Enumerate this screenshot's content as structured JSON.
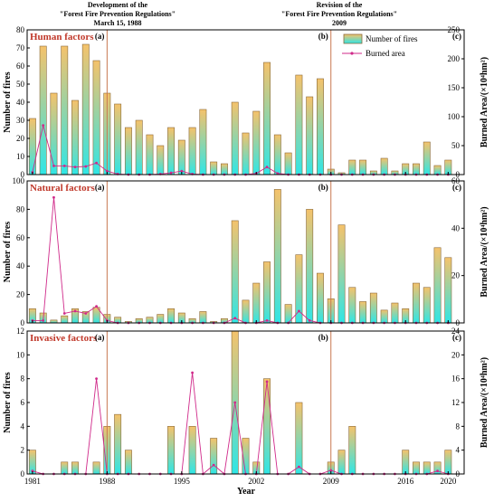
{
  "annotations": {
    "left_line1": "Development of the",
    "left_line2": "\"Forest Fire Prevention Regulations\"",
    "left_line3": "March 15, 1988",
    "right_line1": "Revision of the",
    "right_line2": "\"Forest Fire Prevention Regulations\"",
    "right_line3": "2009"
  },
  "x_axis": {
    "label": "Year",
    "ticks": [
      1981,
      1988,
      1995,
      2002,
      2009,
      2016,
      2020
    ]
  },
  "legend": {
    "bars": "Number of fires",
    "line": "Burned area"
  },
  "colors": {
    "bar_top": "#f5c26b",
    "bar_bottom": "#2fe6e6",
    "bar_edge": "#8a6a3a",
    "line": "#d02a8a",
    "ref_line": "#c87850",
    "panel_title": "#c0392b"
  },
  "reference_years": [
    1988,
    2009
  ],
  "chart_data": [
    {
      "type": "bar",
      "title": "Human factors",
      "panel_labels": [
        "(a)",
        "(b)",
        "(c)"
      ],
      "x": [
        1981,
        1982,
        1983,
        1984,
        1985,
        1986,
        1987,
        1988,
        1989,
        1990,
        1991,
        1992,
        1993,
        1994,
        1995,
        1996,
        1997,
        1998,
        1999,
        2000,
        2001,
        2002,
        2003,
        2004,
        2005,
        2006,
        2007,
        2008,
        2009,
        2010,
        2011,
        2012,
        2013,
        2014,
        2015,
        2016,
        2017,
        2018,
        2019,
        2020
      ],
      "series": [
        {
          "name": "Number of fires",
          "values": [
            31,
            71,
            45,
            71,
            41,
            72,
            63,
            45,
            39,
            26,
            30,
            22,
            16,
            26,
            19,
            26,
            36,
            7,
            6,
            40,
            23,
            35,
            62,
            22,
            12,
            55,
            43,
            53,
            3,
            1,
            8,
            8,
            2,
            9,
            2,
            6,
            6,
            18,
            5,
            8
          ]
        },
        {
          "name": "Burned area",
          "values": [
            4,
            85,
            15,
            15,
            13,
            14,
            20,
            6,
            1,
            0,
            0,
            0,
            1,
            3,
            6,
            1,
            0,
            0,
            0,
            0,
            0,
            2,
            13,
            2,
            0,
            0,
            0,
            0,
            0,
            0,
            0,
            0,
            0,
            0,
            0,
            0,
            0,
            0,
            0,
            0
          ]
        }
      ],
      "ylabel": "Number of fires",
      "ylim": [
        0,
        80
      ],
      "yticks": [
        0,
        10,
        20,
        30,
        40,
        50,
        60,
        70,
        80
      ],
      "y2label": "Burned Area/(×10⁴hm²)",
      "y2lim": [
        0,
        250
      ],
      "y2ticks": [
        0,
        50,
        100,
        150,
        200,
        250
      ],
      "legend_position": "top-right"
    },
    {
      "type": "bar",
      "title": "Natural factors",
      "panel_labels": [
        "(a)",
        "(b)",
        "(c)"
      ],
      "x": [
        1981,
        1982,
        1983,
        1984,
        1985,
        1986,
        1987,
        1988,
        1989,
        1990,
        1991,
        1992,
        1993,
        1994,
        1995,
        1996,
        1997,
        1998,
        1999,
        2000,
        2001,
        2002,
        2003,
        2004,
        2005,
        2006,
        2007,
        2008,
        2009,
        2010,
        2011,
        2012,
        2013,
        2014,
        2015,
        2016,
        2017,
        2018,
        2019,
        2020
      ],
      "series": [
        {
          "name": "Number of fires",
          "values": [
            10,
            7,
            2,
            5,
            10,
            8,
            11,
            6,
            4,
            1,
            3,
            4,
            6,
            10,
            7,
            3,
            8,
            1,
            3,
            72,
            16,
            28,
            43,
            94,
            13,
            48,
            80,
            35,
            17,
            69,
            25,
            15,
            21,
            9,
            14,
            10,
            28,
            25,
            53,
            46
          ]
        },
        {
          "name": "Burned area",
          "values": [
            1,
            1,
            53,
            4,
            5,
            4,
            7,
            1,
            0,
            0,
            0,
            0,
            0,
            0,
            0,
            0,
            0,
            0,
            0,
            2,
            0,
            0,
            1,
            0,
            0,
            5,
            1,
            0,
            0,
            0,
            0,
            0,
            0,
            0,
            0,
            0,
            0,
            0,
            0,
            0
          ]
        }
      ],
      "ylabel": "Number of fires",
      "ylim": [
        0,
        100
      ],
      "yticks": [
        0,
        20,
        40,
        60,
        80,
        100
      ],
      "y2label": "Burned Area/(×10⁴hm²)",
      "y2lim": [
        0,
        60
      ],
      "y2ticks": [
        0,
        20,
        40,
        60
      ]
    },
    {
      "type": "bar",
      "title": "Invasive factors",
      "panel_labels": [
        "(a)",
        "(b)",
        "(c)"
      ],
      "x": [
        1981,
        1982,
        1983,
        1984,
        1985,
        1986,
        1987,
        1988,
        1989,
        1990,
        1991,
        1992,
        1993,
        1994,
        1995,
        1996,
        1997,
        1998,
        1999,
        2000,
        2001,
        2002,
        2003,
        2004,
        2005,
        2006,
        2007,
        2008,
        2009,
        2010,
        2011,
        2012,
        2013,
        2014,
        2015,
        2016,
        2017,
        2018,
        2019,
        2020
      ],
      "series": [
        {
          "name": "Number of fires",
          "values": [
            2,
            0,
            0,
            1,
            1,
            0,
            1,
            4,
            5,
            2,
            0,
            0,
            0,
            4,
            0,
            4,
            0,
            3,
            0,
            12,
            3,
            1,
            8,
            0,
            0,
            6,
            0,
            0,
            1,
            2,
            4,
            0,
            0,
            0,
            0,
            2,
            1,
            1,
            1,
            2
          ]
        },
        {
          "name": "Burned area",
          "values": [
            0.5,
            0,
            0,
            0,
            0,
            0,
            16,
            0,
            0,
            0,
            0,
            0,
            0,
            0,
            0,
            17,
            0,
            1.5,
            0,
            12,
            0,
            0,
            15.5,
            0,
            0,
            1.2,
            0,
            0,
            0.6,
            0,
            0,
            0,
            0,
            0,
            0,
            0,
            0,
            0,
            0.5,
            0
          ]
        }
      ],
      "ylabel": "Number of fires",
      "ylim": [
        0,
        12
      ],
      "yticks": [
        0,
        2,
        4,
        6,
        8,
        10,
        12
      ],
      "y2label": "Burned Area/(×10⁴hm²)",
      "y2lim": [
        0,
        24
      ],
      "y2ticks": [
        0,
        4,
        8,
        12,
        16,
        20,
        24
      ]
    }
  ]
}
